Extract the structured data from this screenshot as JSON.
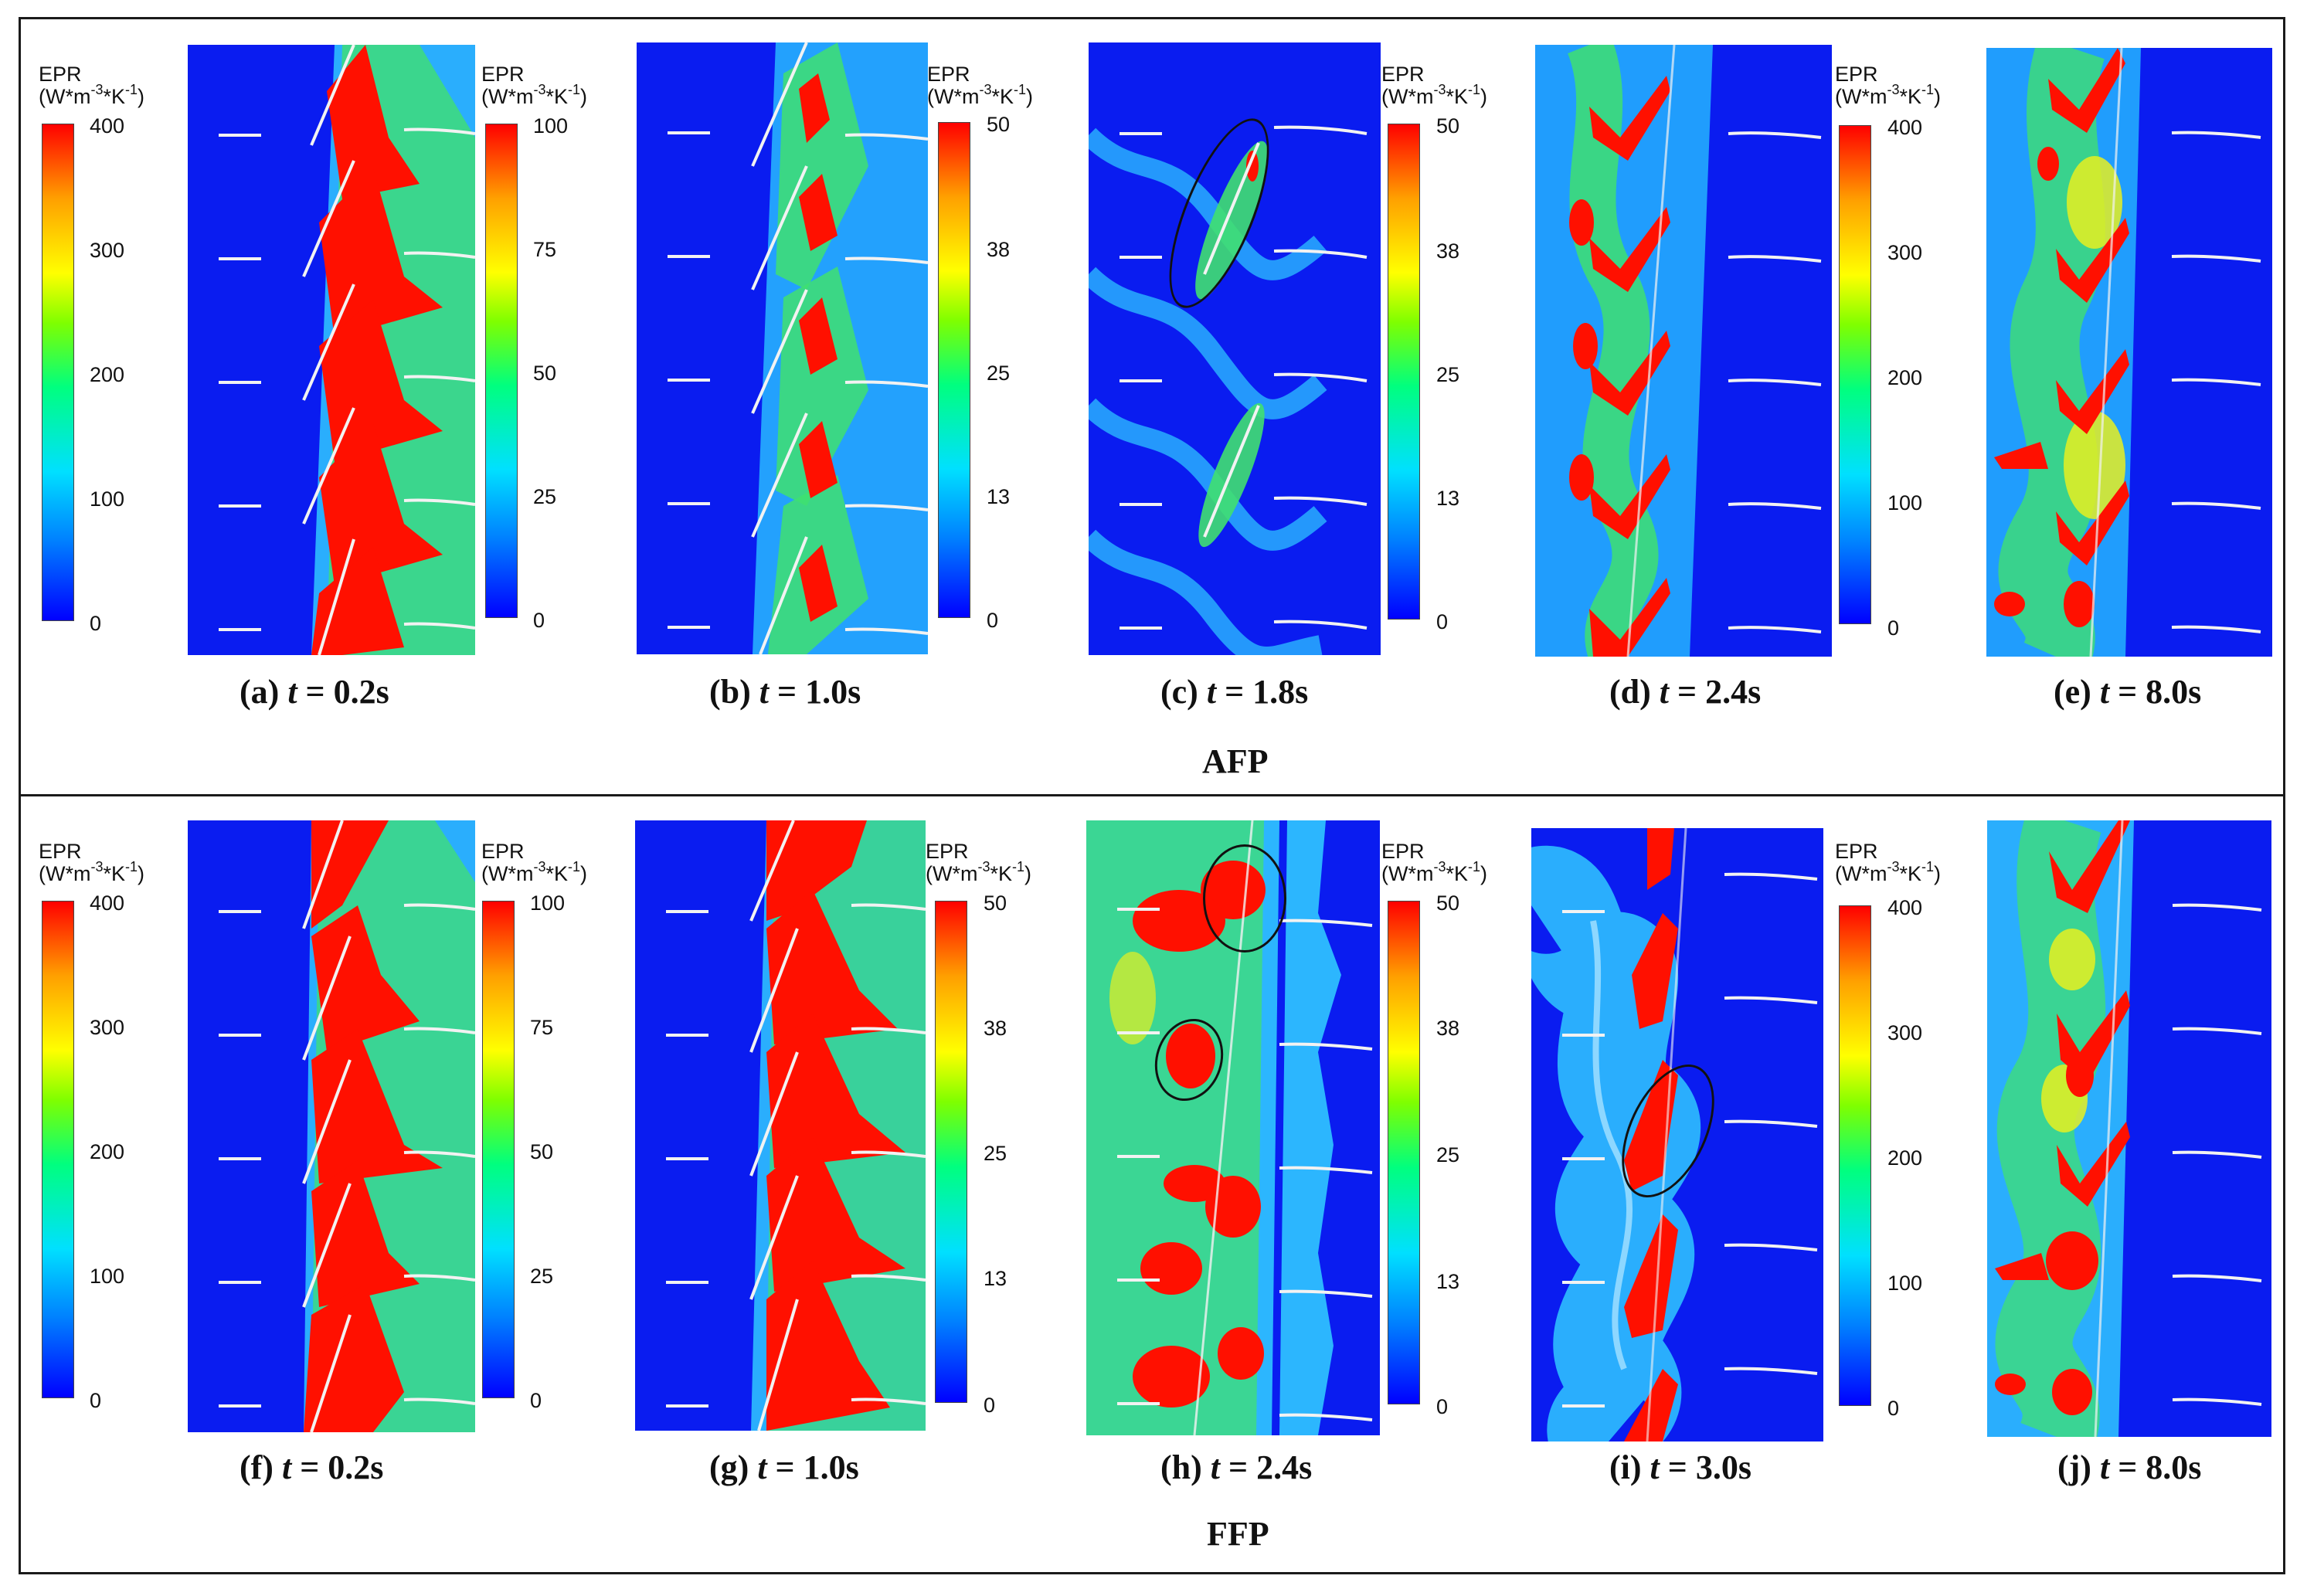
{
  "figure": {
    "colorbar_title_line1": "EPR",
    "colorbar_title_line2": "(W*m",
    "colorbar_unit_exp1": "-3",
    "colorbar_unit_mid": "*K",
    "colorbar_unit_exp2": "-1",
    "colorbar_unit_end": ")",
    "scale_400": [
      "400",
      "300",
      "200",
      "100",
      "0"
    ],
    "scale_100": [
      "100",
      "75",
      "50",
      "25",
      "0"
    ],
    "scale_50": [
      "50",
      "38",
      "25",
      "13",
      "0"
    ],
    "time_symbol": "t"
  },
  "rows": [
    {
      "label": "AFP",
      "panels": [
        {
          "prefix": "(a) ",
          "time": " = 0.2s",
          "scale": "400"
        },
        {
          "prefix": "(b) ",
          "time": " = 1.0s",
          "scale": "100"
        },
        {
          "prefix": "(c) ",
          "time": " = 1.8s",
          "scale": "50"
        },
        {
          "prefix": "(d) ",
          "time": " = 2.4s",
          "scale": "50"
        },
        {
          "prefix": "(e) ",
          "time": " = 8.0s",
          "scale": "400"
        }
      ]
    },
    {
      "label": "FFP",
      "panels": [
        {
          "prefix": "(f) ",
          "time": " = 0.2s",
          "scale": "400"
        },
        {
          "prefix": "(g) ",
          "time": " = 1.0s",
          "scale": "100"
        },
        {
          "prefix": "(h) ",
          "time": " = 2.4s",
          "scale": "50"
        },
        {
          "prefix": "(i) ",
          "time": " = 3.0s",
          "scale": "50"
        },
        {
          "prefix": "(j) ",
          "time": " = 8.0s",
          "scale": "400"
        }
      ]
    }
  ],
  "colors": {
    "background_low": "#0a1cf0",
    "mid_cyan": "#18c8ff",
    "mid_green": "#30e060",
    "mid_yellow": "#e8f020",
    "high_red": "#ff1000",
    "blade": "#f2f2f2"
  }
}
